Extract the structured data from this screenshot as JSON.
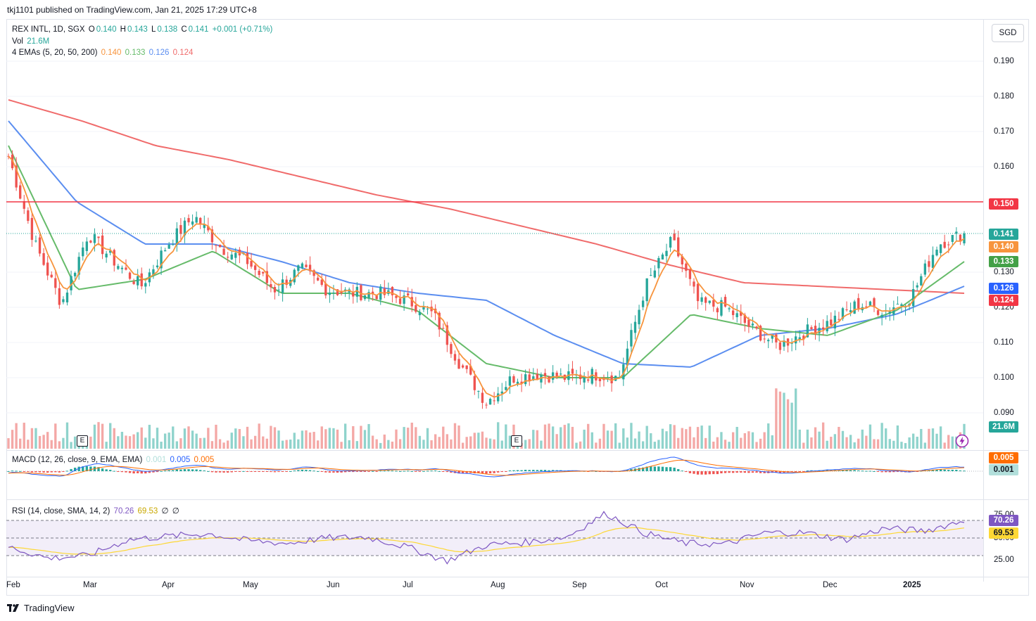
{
  "header": {
    "published": "tkj1101 published on TradingView.com, Jan 21, 2025 17:29 UTC+8"
  },
  "legend": {
    "symbol": "REX INTL, 1D, SGX",
    "o_label": "O",
    "o": "0.140",
    "h_label": "H",
    "h": "0.143",
    "l_label": "L",
    "l": "0.138",
    "c_label": "C",
    "c": "0.141",
    "change": "+0.001 (+0.71%)",
    "vol_label": "Vol",
    "vol": "21.6M",
    "emas_label": "4 EMAs (5, 20, 50, 200)",
    "ema5": "0.140",
    "ema20": "0.133",
    "ema50": "0.126",
    "ema200": "0.124",
    "macd_label": "MACD (12, 26, close, 9, EMA, EMA)",
    "macd_hist": "0.001",
    "macd_line": "0.005",
    "macd_signal": "0.005",
    "rsi_label": "RSI (14, close, SMA, 14, 2)",
    "rsi": "70.26",
    "rsi_ma": "69.53",
    "rsi_extra1": "∅",
    "rsi_extra2": "∅"
  },
  "currency": "SGD",
  "price_axis": [
    "0.190",
    "0.180",
    "0.170",
    "0.160",
    "0.130",
    "0.120",
    "0.110",
    "0.100",
    "0.090"
  ],
  "rsi_axis": [
    "75.00",
    "50.00",
    "25.00"
  ],
  "tags": {
    "level": "0.150",
    "close": "0.141",
    "ema5": "0.140",
    "ema20": "0.133",
    "ema50": "0.126",
    "ema200": "0.124",
    "volume": "21.6M",
    "macd_signal": "0.005",
    "macd_hist": "0.001",
    "rsi": "70.26",
    "rsi_ma": "69.53"
  },
  "x_axis": [
    "Feb",
    "Mar",
    "Apr",
    "May",
    "Jun",
    "Jul",
    "Aug",
    "Sep",
    "Oct",
    "Nov",
    "Dec",
    "2025"
  ],
  "earnings_badge": "E",
  "footer": {
    "brand": "TradingView"
  },
  "colors": {
    "up": "#26a69a",
    "down": "#ef5350",
    "ema5": "#f7943d",
    "ema20": "#66bb6a",
    "ema50": "#5b8ef0",
    "ema200": "#f06b6b",
    "level": "#f23645",
    "macd": "#2962ff",
    "signal": "#ff6d00",
    "rsi": "#7e57c2",
    "rsi_ma": "#fdd835"
  },
  "chart_data": {
    "type": "candlestick",
    "symbol": "REX INTL",
    "timeframe": "1D",
    "exchange": "SGX",
    "horizontal_level": 0.15,
    "price_range": [
      0.085,
      0.195
    ],
    "months": [
      "Feb",
      "Mar",
      "Apr",
      "May",
      "Jun",
      "Jul",
      "Aug",
      "Sep",
      "Oct",
      "Nov",
      "Dec",
      "2025"
    ],
    "close_path": [
      {
        "t": "Feb",
        "v": 0.163
      },
      {
        "t": "Feb-mid",
        "v": 0.138
      },
      {
        "t": "Feb-end",
        "v": 0.121
      },
      {
        "t": "Mar",
        "v": 0.141
      },
      {
        "t": "Mar-mid",
        "v": 0.133
      },
      {
        "t": "Mar-end",
        "v": 0.126
      },
      {
        "t": "Apr",
        "v": 0.138
      },
      {
        "t": "Apr-mid",
        "v": 0.146
      },
      {
        "t": "Apr-end",
        "v": 0.137
      },
      {
        "t": "May",
        "v": 0.133
      },
      {
        "t": "May-mid",
        "v": 0.125
      },
      {
        "t": "May-end",
        "v": 0.131
      },
      {
        "t": "Jun",
        "v": 0.125
      },
      {
        "t": "Jun-mid",
        "v": 0.124
      },
      {
        "t": "Jun-end",
        "v": 0.124
      },
      {
        "t": "Jul",
        "v": 0.122
      },
      {
        "t": "Jul-mid",
        "v": 0.118
      },
      {
        "t": "Jul-end",
        "v": 0.104
      },
      {
        "t": "Aug",
        "v": 0.093
      },
      {
        "t": "Aug-mid",
        "v": 0.1
      },
      {
        "t": "Aug-end",
        "v": 0.101
      },
      {
        "t": "Sep",
        "v": 0.1
      },
      {
        "t": "Sep-mid",
        "v": 0.101
      },
      {
        "t": "Sep-end",
        "v": 0.1
      },
      {
        "t": "Oct",
        "v": 0.126
      },
      {
        "t": "Oct-early",
        "v": 0.139
      },
      {
        "t": "Oct-mid",
        "v": 0.121
      },
      {
        "t": "Oct-end",
        "v": 0.12
      },
      {
        "t": "Nov",
        "v": 0.114
      },
      {
        "t": "Nov-mid",
        "v": 0.109
      },
      {
        "t": "Nov-end",
        "v": 0.113
      },
      {
        "t": "Dec",
        "v": 0.116
      },
      {
        "t": "Dec-mid",
        "v": 0.121
      },
      {
        "t": "Dec-end",
        "v": 0.119
      },
      {
        "t": "2025",
        "v": 0.123
      },
      {
        "t": "Jan-mid",
        "v": 0.138
      },
      {
        "t": "Jan-21",
        "v": 0.141
      }
    ],
    "ema200_path": [
      0.179,
      0.173,
      0.166,
      0.162,
      0.157,
      0.152,
      0.148,
      0.143,
      0.138,
      0.132,
      0.127,
      0.126,
      0.125,
      0.124
    ],
    "ema50_path": [
      0.173,
      0.15,
      0.138,
      0.138,
      0.133,
      0.127,
      0.124,
      0.122,
      0.112,
      0.104,
      0.103,
      0.112,
      0.114,
      0.118,
      0.126
    ],
    "ema20_path": [
      0.166,
      0.125,
      0.128,
      0.136,
      0.124,
      0.124,
      0.119,
      0.104,
      0.1,
      0.1,
      0.118,
      0.114,
      0.112,
      0.119,
      0.133
    ],
    "rsi_path": [
      40,
      27,
      30,
      48,
      52,
      55,
      47,
      44,
      50,
      51,
      40,
      24,
      42,
      45,
      51,
      78,
      55,
      44,
      43,
      56,
      56,
      48,
      61,
      58,
      70
    ],
    "rsi_levels": [
      70,
      50,
      30
    ]
  }
}
